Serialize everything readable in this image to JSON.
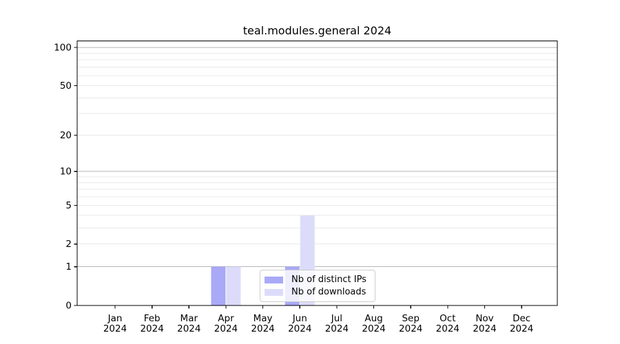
{
  "chart_data": {
    "type": "bar",
    "title": "teal.modules.general 2024",
    "categories": [
      "Jan 2024",
      "Feb 2024",
      "Mar 2024",
      "Apr 2024",
      "May 2024",
      "Jun 2024",
      "Jul 2024",
      "Aug 2024",
      "Sep 2024",
      "Oct 2024",
      "Nov 2024",
      "Dec 2024"
    ],
    "series": [
      {
        "name": "Nb of distinct IPs",
        "color": "#a9a9f8",
        "values": [
          0,
          0,
          0,
          1,
          0,
          1,
          0,
          0,
          0,
          0,
          0,
          0
        ]
      },
      {
        "name": "Nb of downloads",
        "color": "#dcdcfa",
        "values": [
          0,
          0,
          0,
          1,
          0,
          4,
          0,
          0,
          0,
          0,
          0,
          0
        ]
      }
    ],
    "xlabel": "",
    "ylabel": "",
    "ylim": [
      0,
      100
    ],
    "yscale": "log1p",
    "yticks": [
      0,
      1,
      2,
      5,
      10,
      20,
      50,
      100
    ],
    "major_gridlines": [
      1,
      10,
      100
    ],
    "minor_gridlines": [
      2,
      3,
      4,
      5,
      6,
      7,
      8,
      9,
      20,
      30,
      40,
      50,
      60,
      70,
      80,
      90
    ],
    "grid_on": true,
    "legend_position": "inside-bottom-center",
    "colors": {
      "major_grid": "#b5b5b5",
      "minor_grid": "#e8e8e8",
      "spine": "#000000",
      "background": "#ffffff"
    }
  }
}
